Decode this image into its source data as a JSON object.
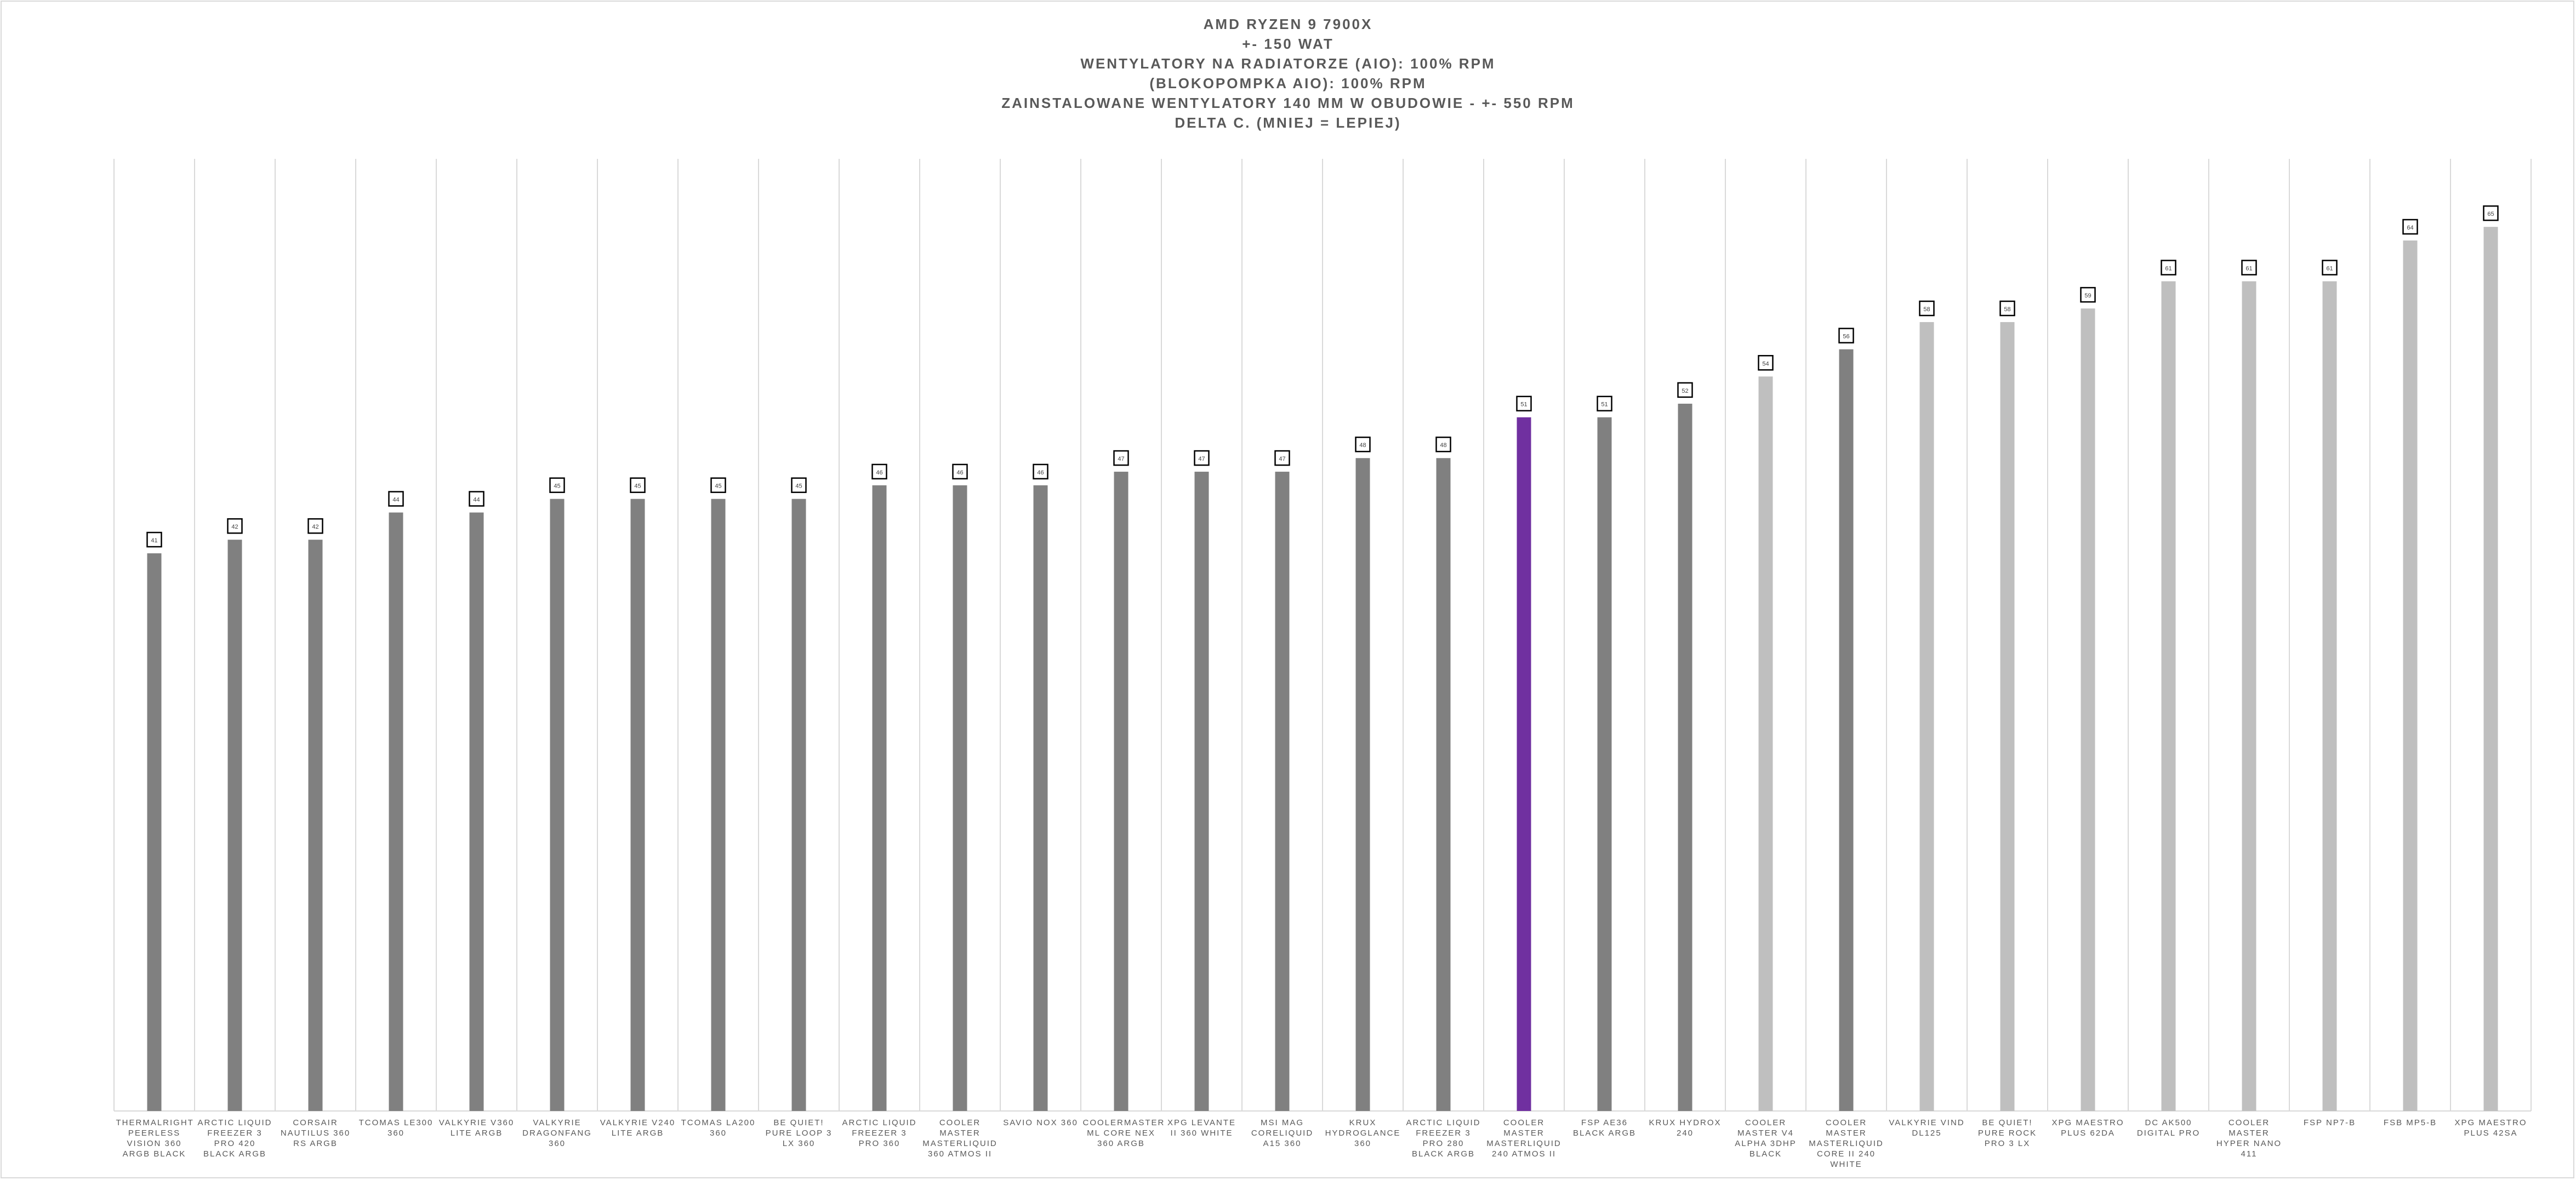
{
  "chart_data": {
    "type": "bar",
    "title": [
      "AMD RYZEN 9 7900X",
      "+- 150 WAT",
      "WENTYLATORY NA RADIATORZE (AIO): 100% RPM",
      "(BLOKOPOMPKA AIO): 100% RPM",
      "ZAINSTALOWANE WENTYLATORY 140 MM W OBUDOWIE - +- 550 RPM",
      "DELTA C. (MNIEJ = LEPIEJ)"
    ],
    "categories": [
      "THERMALRIGHT PEERLESS VISION 360 ARGB BLACK",
      "ARCTIC LIQUID FREEZER 3 PRO 420 BLACK ARGB",
      "CORSAIR NAUTILUS 360 RS ARGB",
      "TCOMAS LE300 360",
      "VALKYRIE V360 LITE ARGB",
      "VALKYRIE DRAGONFANG 360",
      "VALKYRIE V240 LITE ARGB",
      "TCOMAS LA200 360",
      "BE QUIET! PURE LOOP 3 LX 360",
      "ARCTIC LIQUID FREEZER 3 PRO 360",
      "COOLER MASTER MASTERLIQUID 360 ATMOS II",
      "SAVIO NOX 360",
      "COOLERMASTER ML CORE NEX 360 ARGB",
      "XPG LEVANTE II 360 WHITE",
      "MSI MAG CORELIQUID A15 360",
      "KRUX HYDROGLANCE 360",
      "ARCTIC LIQUID FREEZER 3 PRO 280 BLACK ARGB",
      "COOLER MASTER MASTERLIQUID 240 ATMOS II",
      "FSP AE36 BLACK ARGB",
      "KRUX HYDROX 240",
      "COOLER MASTER V4 ALPHA 3DHP BLACK",
      "COOLER MASTER MASTERLIQUID CORE II 240 WHITE",
      "VALKYRIE VIND DL125",
      "BE QUIET! PURE ROCK PRO 3 LX",
      "XPG MAESTRO PLUS 62DA",
      "DC AK500 DIGITAL PRO",
      "COOLER MASTER HYPER NANO 411",
      "FSP NP7-B",
      "FSB MP5-B",
      "XPG MAESTRO PLUS 42SA"
    ],
    "values": [
      41,
      42,
      42,
      44,
      44,
      45,
      45,
      45,
      45,
      46,
      46,
      46,
      47,
      47,
      47,
      48,
      48,
      51,
      51,
      52,
      54,
      56,
      58,
      58,
      59,
      61,
      61,
      61,
      64,
      65
    ],
    "bar_colors": [
      "#808080",
      "#808080",
      "#808080",
      "#808080",
      "#808080",
      "#808080",
      "#808080",
      "#808080",
      "#808080",
      "#808080",
      "#808080",
      "#808080",
      "#808080",
      "#808080",
      "#808080",
      "#808080",
      "#808080",
      "#7030a0",
      "#808080",
      "#808080",
      "#bfbfbf",
      "#808080",
      "#bfbfbf",
      "#bfbfbf",
      "#bfbfbf",
      "#bfbfbf",
      "#bfbfbf",
      "#bfbfbf",
      "#bfbfbf",
      "#bfbfbf"
    ],
    "ylim": [
      0,
      70
    ],
    "xlabel": "",
    "ylabel": "",
    "grid": "vertical",
    "legend": "none",
    "colors": {
      "default": "#808080",
      "highlight": "#7030a0",
      "air": "#bfbfbf",
      "grid": "#d9d9d9",
      "text": "#595959"
    }
  }
}
